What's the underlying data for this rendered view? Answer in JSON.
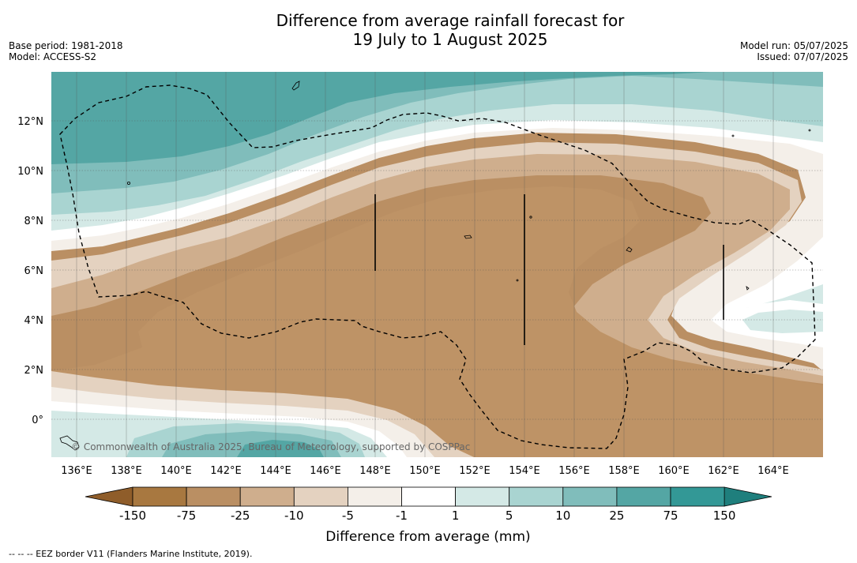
{
  "header": {
    "title_line1": "Difference from average rainfall forecast for",
    "title_line2": "19 July to 1 August 2025",
    "base_period": "Base period: 1981-2018",
    "model": "Model: ACCESS-S2",
    "model_run": "Model run: 05/07/2025",
    "issued": "Issued: 07/07/2025"
  },
  "map": {
    "lon_labels": [
      "136°E",
      "138°E",
      "140°E",
      "142°E",
      "144°E",
      "146°E",
      "148°E",
      "150°E",
      "152°E",
      "154°E",
      "156°E",
      "158°E",
      "160°E",
      "162°E",
      "164°E"
    ],
    "lat_labels": [
      "12°N",
      "10°N",
      "8°N",
      "6°N",
      "4°N",
      "2°N",
      "0°"
    ],
    "copyright": "© Commonwealth of Australia 2025, Bureau of Meteorology, supported by COSPPac"
  },
  "colorbar": {
    "ticks": [
      "-150",
      "-75",
      "-25",
      "-10",
      "-5",
      "-1",
      "1",
      "5",
      "10",
      "25",
      "75",
      "150"
    ],
    "colors": [
      "#a87840",
      "#ba8f63",
      "#cfae8d",
      "#e4d2c0",
      "#f4efe9",
      "#ffffff",
      "#d4e9e6",
      "#a9d4d1",
      "#80bdbb",
      "#54a6a4",
      "#339896"
    ],
    "under_color": "#8f5d2a",
    "over_color": "#1f7f7d",
    "label": "Difference from average (mm)"
  },
  "footnote": "--  --  -- EEZ border V11 (Flanders Marine Institute, 2019)."
}
